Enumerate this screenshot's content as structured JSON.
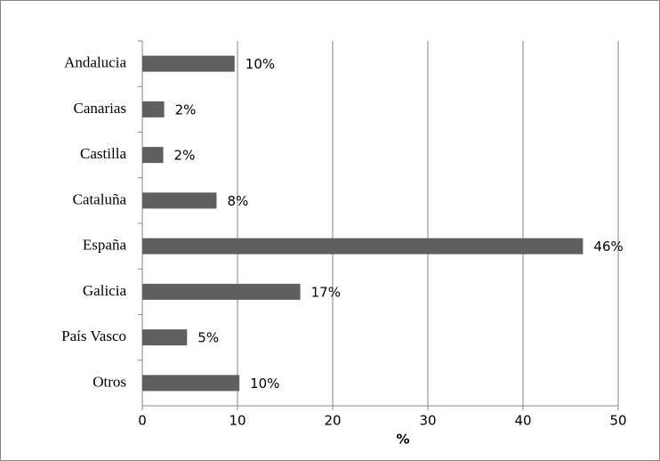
{
  "chart_data": {
    "type": "bar",
    "orientation": "horizontal",
    "x_label": "%",
    "categories": [
      "Andalucia",
      "Canarias",
      "Castilla",
      "Cataluña",
      "España",
      "Galicia",
      "País Vasco",
      "Otros"
    ],
    "values": [
      9.7,
      2.3,
      2.2,
      7.8,
      46.3,
      16.6,
      4.7,
      10.2
    ],
    "value_labels": [
      "10%",
      "2%",
      "2%",
      "8%",
      "46%",
      "17%",
      "5%",
      "10%"
    ],
    "color": "#5f5f5f",
    "xlim": [
      0,
      50
    ],
    "xticks": [
      0,
      10,
      20,
      30,
      40,
      50
    ],
    "grid": true
  }
}
